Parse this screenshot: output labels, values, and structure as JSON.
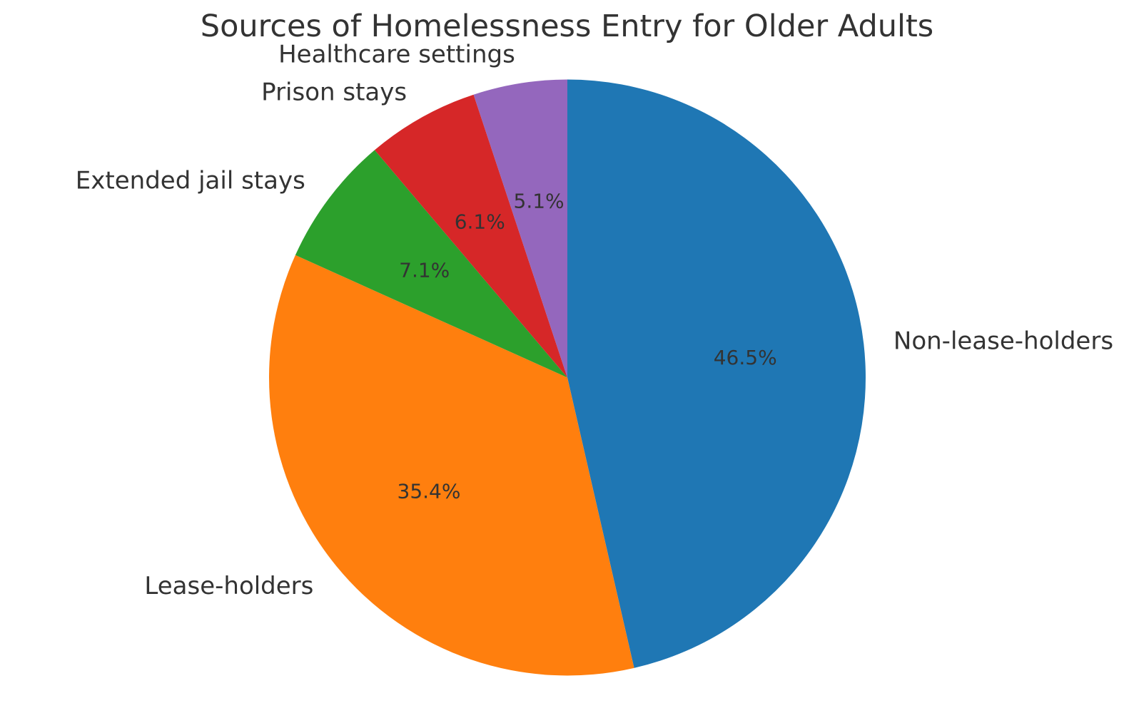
{
  "chart_data": {
    "type": "pie",
    "title": "Sources of Homelessness Entry for Older Adults",
    "categories": [
      "Non-lease-holders",
      "Lease-holders",
      "Extended jail stays",
      "Prison stays",
      "Healthcare settings"
    ],
    "values": [
      46.5,
      35.4,
      7.1,
      6.1,
      5.1
    ],
    "pct_labels": [
      "46.5%",
      "35.4%",
      "7.1%",
      "6.1%",
      "5.1%"
    ],
    "colors": [
      "#1f77b4",
      "#ff7f0e",
      "#2ca02c",
      "#d62728",
      "#9467bd"
    ],
    "start_angle_deg": 90,
    "direction": "clockwise",
    "label_distance": 1.1,
    "pct_distance": 0.6,
    "legend": "none",
    "background": "#ffffff",
    "text_color": "#333333"
  }
}
